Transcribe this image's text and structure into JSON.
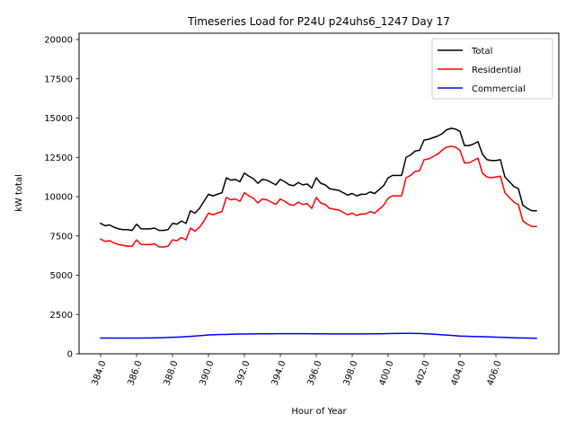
{
  "chart_data": {
    "type": "line",
    "title": "Timeseries Load for P24U p24uhs6_1247  Day 17",
    "xlabel": "Hour of Year",
    "ylabel": "kW total",
    "xlim": [
      382.8,
      409.5
    ],
    "ylim": [
      0,
      20400
    ],
    "grid": false,
    "legend_position": "top-right",
    "x_ticks": [
      384,
      386,
      388,
      390,
      392,
      394,
      396,
      398,
      400,
      402,
      404,
      406
    ],
    "x_tick_labels": [
      "384.0",
      "386.0",
      "388.0",
      "390.0",
      "392.0",
      "394.0",
      "396.0",
      "398.0",
      "400.0",
      "402.0",
      "404.0",
      "406.0"
    ],
    "y_ticks": [
      0,
      2500,
      5000,
      7500,
      10000,
      12500,
      15000,
      17500,
      20000
    ],
    "y_tick_labels": [
      "0",
      "2500",
      "5000",
      "7500",
      "10000",
      "12500",
      "15000",
      "17500",
      "20000"
    ],
    "x_start": 384.0,
    "x_step": 0.25,
    "series": [
      {
        "name": "Total",
        "color": "#000000",
        "values": [
          8300,
          8150,
          8200,
          8050,
          7950,
          7900,
          7900,
          7850,
          8250,
          7950,
          7950,
          7950,
          8000,
          7850,
          7850,
          7900,
          8300,
          8250,
          8450,
          8300,
          9100,
          8950,
          9250,
          9700,
          10150,
          10050,
          10150,
          10250,
          11200,
          11050,
          11100,
          10950,
          11500,
          11300,
          11150,
          10850,
          11100,
          11050,
          10900,
          10750,
          11100,
          10950,
          10750,
          10700,
          10900,
          10750,
          10800,
          10550,
          11200,
          10850,
          10750,
          10500,
          10450,
          10400,
          10250,
          10100,
          10200,
          10050,
          10150,
          10150,
          10300,
          10200,
          10450,
          10700,
          11200,
          11350,
          11350,
          11350,
          12500,
          12650,
          12900,
          12950,
          13600,
          13650,
          13750,
          13850,
          14000,
          14250,
          14350,
          14300,
          14150,
          13250,
          13250,
          13350,
          13500,
          12700,
          12350,
          12300,
          12300,
          12350,
          11250,
          10950,
          10650,
          10500,
          9450,
          9250,
          9100,
          9100
        ]
      },
      {
        "name": "Residential",
        "color": "#ff0000",
        "values": [
          7300,
          7150,
          7200,
          7050,
          6950,
          6900,
          6850,
          6850,
          7250,
          6950,
          6950,
          6950,
          7000,
          6800,
          6800,
          6850,
          7250,
          7200,
          7400,
          7250,
          8000,
          7800,
          8050,
          8450,
          8950,
          8850,
          8950,
          9050,
          9950,
          9800,
          9850,
          9700,
          10250,
          10050,
          9900,
          9600,
          9850,
          9800,
          9650,
          9500,
          9850,
          9700,
          9500,
          9450,
          9650,
          9500,
          9550,
          9250,
          9950,
          9600,
          9500,
          9250,
          9200,
          9150,
          9000,
          8850,
          8950,
          8800,
          8900,
          8900,
          9050,
          8950,
          9200,
          9450,
          9900,
          10050,
          10050,
          10050,
          11200,
          11350,
          11600,
          11650,
          12350,
          12400,
          12550,
          12700,
          12950,
          13150,
          13200,
          13150,
          12950,
          12150,
          12150,
          12300,
          12450,
          11500,
          11250,
          11200,
          11250,
          11300,
          10250,
          9950,
          9650,
          9500,
          8450,
          8250,
          8100,
          8100
        ]
      },
      {
        "name": "Commercial",
        "color": "#0000ff",
        "values": [
          1000,
          1000,
          1000,
          1000,
          1000,
          1000,
          1000,
          1000,
          1000,
          1000,
          1005,
          1010,
          1015,
          1020,
          1030,
          1040,
          1050,
          1060,
          1075,
          1090,
          1110,
          1130,
          1150,
          1170,
          1200,
          1210,
          1220,
          1225,
          1230,
          1240,
          1250,
          1255,
          1260,
          1262,
          1265,
          1268,
          1270,
          1272,
          1275,
          1276,
          1277,
          1278,
          1278,
          1278,
          1278,
          1277,
          1276,
          1275,
          1273,
          1270,
          1268,
          1265,
          1263,
          1262,
          1262,
          1262,
          1262,
          1263,
          1265,
          1267,
          1270,
          1272,
          1275,
          1280,
          1285,
          1290,
          1295,
          1300,
          1300,
          1298,
          1295,
          1290,
          1280,
          1265,
          1250,
          1230,
          1210,
          1190,
          1170,
          1150,
          1130,
          1120,
          1110,
          1100,
          1095,
          1090,
          1080,
          1070,
          1060,
          1050,
          1040,
          1030,
          1020,
          1010,
          1005,
          1000,
          995,
          990
        ]
      }
    ]
  }
}
